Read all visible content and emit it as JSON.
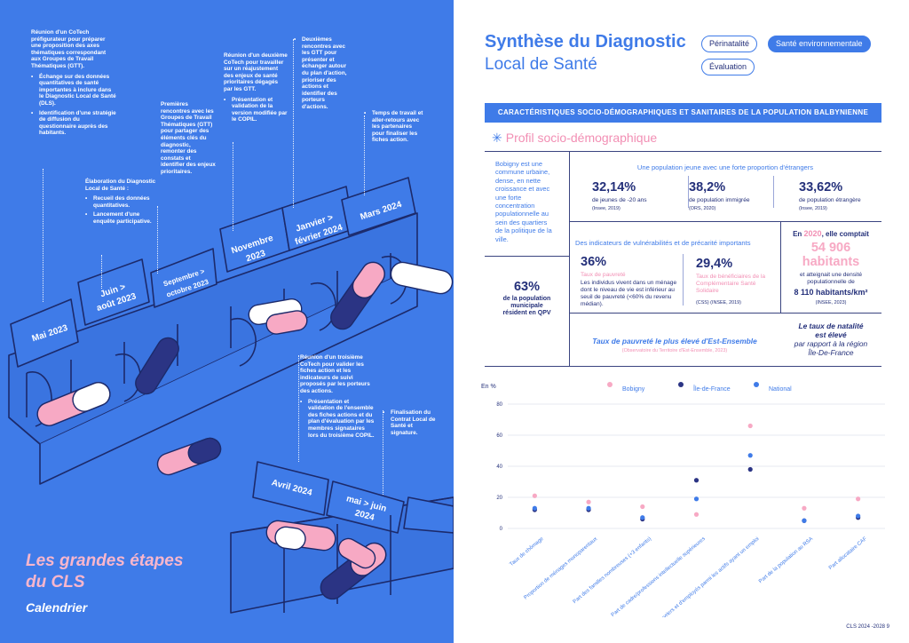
{
  "left_page": {
    "title_line1": "Les grandes étapes",
    "title_line2": "du CLS",
    "subtitle": "Calendrier",
    "months": [
      "Mai 2023",
      "Juin > août 2023",
      "Septembre > octobre 2023",
      "Novembre 2023",
      "Janvier > février 2024",
      "Mars 2024",
      "Avril 2024",
      "mai > juin 2024"
    ],
    "annotations": {
      "a1_text": "Réunion d'un CoTech préfigurateur pour préparer une proposition des axes thématiques correspondant aux Groupes de Travail Thématiques (GTT).",
      "a1_b1": "Échange sur des données quantitatives de santé importantes à inclure dans le Diagnostic Local de Santé (DLS).",
      "a1_b2": "Identification d'une stratégie de diffusion du questionnaire auprès des habitants.",
      "a2_text": "Élaboration du Diagnostic Local de Santé :",
      "a2_b1": "Recueil des données quantitatives.",
      "a2_b2": "Lancement d'une enquête participative.",
      "a3_text": "Premières rencontres avec les Groupes de Travail Thématiques (GTT) pour partager des éléments clés du diagnostic, remonter des constats et identifier des enjeux prioritaires.",
      "a4_text": "Réunion d'un deuxième CoTech pour travailler sur un réajustement des enjeux de santé prioritaires dégagés par les GTT.",
      "a4_b1": "Présentation et validation de la version modifiée par le COPIL.",
      "a5_b1": "Deuxièmes rencontres avec les GTT pour présenter et échanger autour du plan d'action, prioriser des actions et identifier des porteurs d'actions.",
      "a6_b1": "Temps de travail et aller-retours avec les partenaires pour finaliser les fiches action.",
      "a7_text": "Réunion d'un troisième CoTech pour valider les fiches action et les indicateurs de suivi proposés par les porteurs des actions.",
      "a7_b1": "Présentation et validation de l'ensemble des fiches actions et du plan d'évaluation par les membres signataires lors du troisième COPIL.",
      "a8_b1": "Finalisation du Contrat Local de Santé et signature."
    }
  },
  "right_page": {
    "title_line1": "Synthèse du Diagnostic",
    "title_line2": "Local de Santé",
    "chips": [
      "Périnatalité",
      "Santé environnementale",
      "Évaluation"
    ],
    "active_chip": "Santé environnementale",
    "banner": "CARACTÉRISTIQUES SOCIO-DÉMOGRAPHIQUES ET SANITAIRES DE LA POPULATION BALBYNIENNE",
    "section_title": "Profil socio-démographique",
    "intro_text": "Bobigny est une commune urbaine, dense, en nette croissance et avec une forte concentration populationnelle au sein des quartiers de la politique de la ville.",
    "qpv_value": "63%",
    "qpv_label": "de la population municipale résident en QPV",
    "young_title": "Une population jeune avec une forte proportion d'étrangers",
    "stat1_value": "32,14%",
    "stat1_label": "de jeunes de -20 ans",
    "stat1_src": "(Insee, 2019)",
    "stat2_value": "38,2%",
    "stat2_label": "de population immigrée",
    "stat2_src": "(ORS, 2020)",
    "stat3_value": "33,62%",
    "stat3_label": "de population étrangère",
    "stat3_src": "(Insee, 2019)",
    "vuln_title": "Des indicateurs de vulnérabilités et de précarité importants",
    "vuln1_value": "36%",
    "vuln1_label": "Taux de pauvreté",
    "vuln1_desc": "Les individus vivent dans un ménage dont le niveau de vie est inférieur au seuil de pauvreté (<60% du revenu médian).",
    "vuln2_value": "29,4%",
    "vuln2_label": "Taux de bénéficiaires de la Complémentaire Santé Solidaire",
    "vuln2_src": "(CSS) (INSEE, 2019)",
    "pop_prefix": "En",
    "pop_year": "2020",
    "pop_suffix": ", elle comptait",
    "pop_value": "54 906",
    "pop_unit": "habitants",
    "density_text": "et atteignait une densité populationnelle de",
    "density_value": "8 110 habitants/km²",
    "density_src": "(INSEE, 2023)",
    "poverty_highest": "Taux de pauvreté le plus élevé d'Est-Ensemble",
    "poverty_src": "(Observatoire du Territoire d'Est-Ensemble, 2023)",
    "natality_line1": "Le taux de natalité",
    "natality_line2": "est élevé",
    "natality_line3": "par rapport à la région",
    "natality_line4": "Île-De-France",
    "footer": "CLS 2024 -2028   9"
  },
  "chart_data": {
    "type": "scatter",
    "ylabel": "En %",
    "ylim": [
      0,
      80
    ],
    "yticks": [
      0,
      20,
      40,
      60,
      80
    ],
    "categories": [
      "Taux de chômage",
      "Proportion de ménages monoparentaux",
      "Part des familles nombreuses (+3 enfants)",
      "Part de cadre/professions intellectuelle supérieures",
      "Part d'ouvriers et d'employés parmi les actifs ayant un emploi",
      "Part de la population au RSA",
      "Part allocataire CAF"
    ],
    "series": [
      {
        "name": "Bobigny",
        "color": "#f7a9c4",
        "values": [
          21,
          17,
          14,
          9,
          66,
          13,
          19
        ]
      },
      {
        "name": "Île-de-France",
        "color": "#2b3484",
        "values": [
          12,
          12,
          6,
          31,
          38,
          5,
          7
        ]
      },
      {
        "name": "National",
        "color": "#3f7be8",
        "values": [
          13,
          13,
          7,
          19,
          47,
          5,
          8
        ]
      }
    ]
  }
}
